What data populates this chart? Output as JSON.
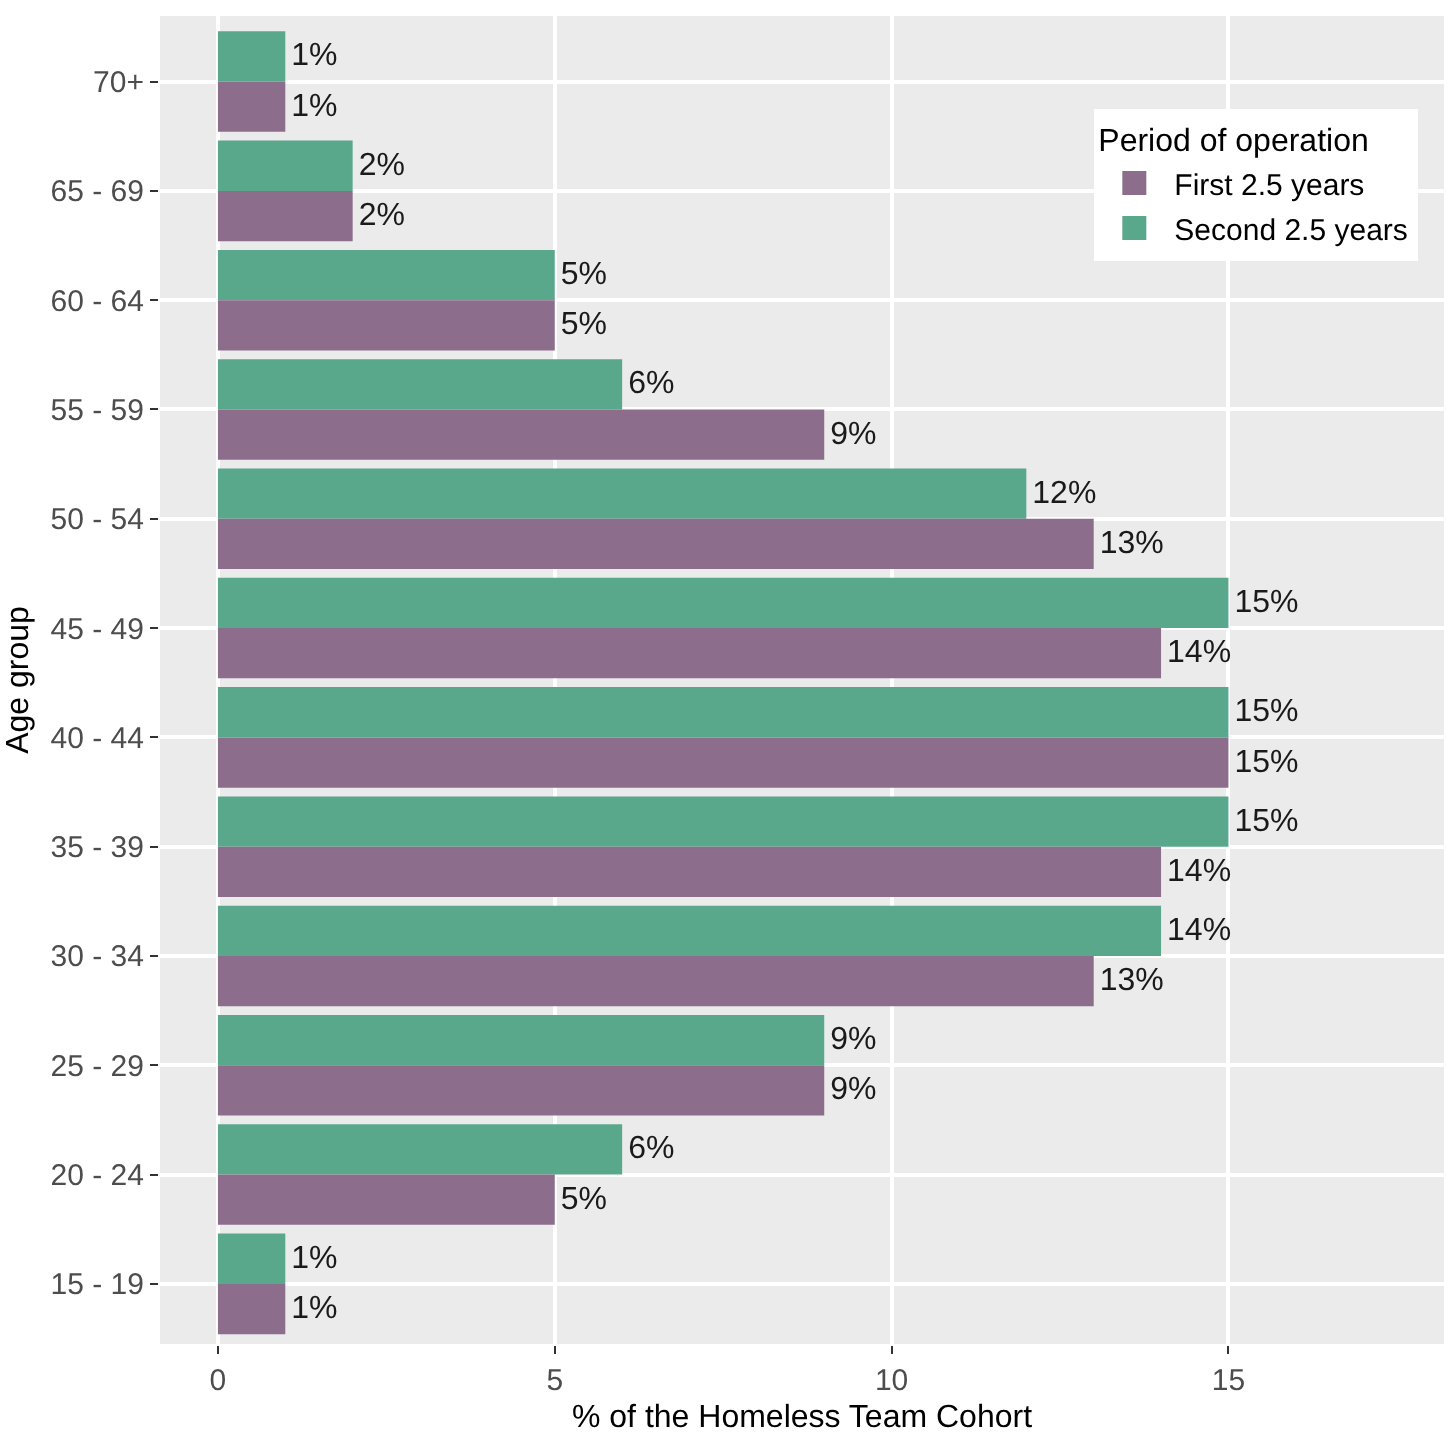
{
  "chart_data": {
    "type": "bar",
    "orientation": "horizontal",
    "xlabel": "% of the Homeless Team Cohort",
    "ylabel": "Age group",
    "legend_title": "Period of operation",
    "categories": [
      "70+",
      "65 - 69",
      "60 - 64",
      "55 - 59",
      "50 - 54",
      "45 - 49",
      "40 - 44",
      "35 - 39",
      "30 - 34",
      "25 - 29",
      "20 - 24",
      "15 - 19"
    ],
    "series": [
      {
        "name": "First 2.5 years",
        "color": "#8c6d8c",
        "values": [
          1,
          2,
          5,
          9,
          13,
          14,
          15,
          14,
          13,
          9,
          5,
          1
        ],
        "value_labels": [
          "1%",
          "2%",
          "5%",
          "9%",
          "13%",
          "14%",
          "15%",
          "14%",
          "13%",
          "9%",
          "5%",
          "1%"
        ]
      },
      {
        "name": "Second 2.5 years",
        "color": "#5aa88c",
        "values": [
          1,
          2,
          5,
          6,
          12,
          15,
          15,
          15,
          14,
          9,
          6,
          1
        ],
        "value_labels": [
          "1%",
          "2%",
          "5%",
          "6%",
          "12%",
          "15%",
          "15%",
          "15%",
          "14%",
          "9%",
          "6%",
          "1%"
        ]
      }
    ],
    "xlim": [
      -0.86,
      18.2
    ],
    "xticks": [
      0,
      5,
      10,
      15
    ],
    "grid": true,
    "legend": "top right"
  }
}
